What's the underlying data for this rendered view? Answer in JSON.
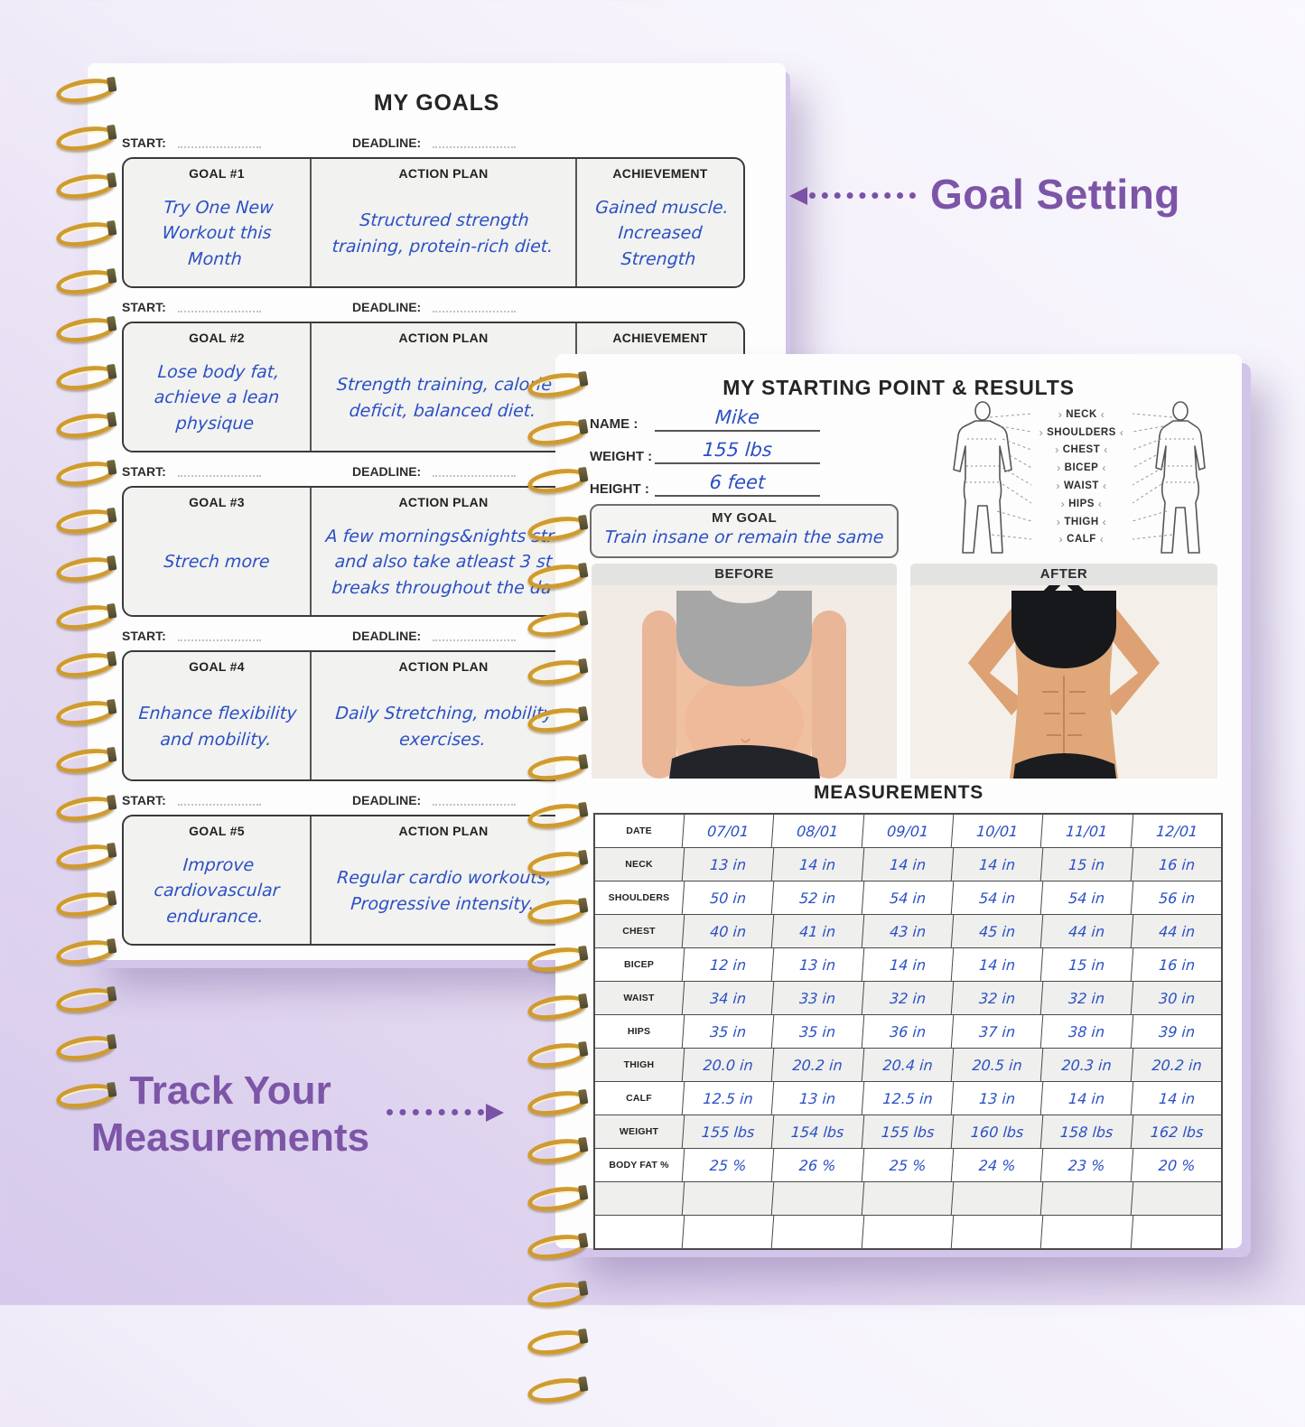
{
  "annotations": {
    "goal_setting": "Goal Setting",
    "track_line1": "Track Your",
    "track_line2": "Measurements"
  },
  "left_page": {
    "title": "MY GOALS",
    "start_label": "START:",
    "deadline_label": "DEADLINE:",
    "action_header": "ACTION PLAN",
    "achievement_header": "ACHIEVEMENT",
    "goals": [
      {
        "header": "GOAL #1",
        "goal": "Try One New Workout this Month",
        "action": "Structured strength training, protein-rich diet.",
        "achievement": "Gained muscle. Increased Strength"
      },
      {
        "header": "GOAL #2",
        "goal": "Lose body fat, achieve a lean physique",
        "action": "Strength training, calorie deficit, balanced diet.",
        "achievement": ""
      },
      {
        "header": "GOAL #3",
        "goal": "Strech more",
        "action": "A few mornings&nights stre and also take atleast 3 st breaks throughout the da",
        "achievement": ""
      },
      {
        "header": "GOAL #4",
        "goal": "Enhance flexibility and mobility.",
        "action": "Daily Stretching, mobility exercises.",
        "achievement": ""
      },
      {
        "header": "GOAL #5",
        "goal": "Improve cardiovascular endurance.",
        "action": "Regular cardio workouts, Progressive intensity.",
        "achievement": ""
      }
    ]
  },
  "right_page": {
    "title": "MY STARTING POINT & RESULTS",
    "fields": {
      "name": {
        "label": "NAME :",
        "value": "Mike"
      },
      "weight": {
        "label": "WEIGHT :",
        "value": "155 lbs"
      },
      "height": {
        "label": "HEIGHT :",
        "value": "6 feet"
      }
    },
    "my_goal": {
      "label": "MY GOAL",
      "value": "Train insane or remain the same"
    },
    "body_labels": [
      "NECK",
      "SHOULDERS",
      "CHEST",
      "BICEP",
      "WAIST",
      "HIPS",
      "THIGH",
      "CALF"
    ],
    "before_label": "BEFORE",
    "after_label": "AFTER",
    "measurements": {
      "title": "MEASUREMENTS",
      "rows": [
        {
          "label": "DATE",
          "values": [
            "07/01",
            "08/01",
            "09/01",
            "10/01",
            "11/01",
            "12/01"
          ]
        },
        {
          "label": "NECK",
          "values": [
            "13 in",
            "14 in",
            "14 in",
            "14 in",
            "15 in",
            "16 in"
          ]
        },
        {
          "label": "SHOULDERS",
          "values": [
            "50 in",
            "52 in",
            "54 in",
            "54 in",
            "54 in",
            "56 in"
          ]
        },
        {
          "label": "CHEST",
          "values": [
            "40 in",
            "41 in",
            "43 in",
            "45 in",
            "44 in",
            "44 in"
          ]
        },
        {
          "label": "BICEP",
          "values": [
            "12 in",
            "13 in",
            "14 in",
            "14 in",
            "15 in",
            "16 in"
          ]
        },
        {
          "label": "WAIST",
          "values": [
            "34 in",
            "33 in",
            "32 in",
            "32 in",
            "32 in",
            "30 in"
          ]
        },
        {
          "label": "HIPS",
          "values": [
            "35 in",
            "35 in",
            "36 in",
            "37 in",
            "38 in",
            "39 in"
          ]
        },
        {
          "label": "THIGH",
          "values": [
            "20.0 in",
            "20.2 in",
            "20.4 in",
            "20.5 in",
            "20.3 in",
            "20.2 in"
          ]
        },
        {
          "label": "CALF",
          "values": [
            "12.5 in",
            "13 in",
            "12.5 in",
            "13 in",
            "14 in",
            "14 in"
          ]
        },
        {
          "label": "WEIGHT",
          "values": [
            "155 lbs",
            "154 lbs",
            "155 lbs",
            "160 lbs",
            "158 lbs",
            "162 lbs"
          ]
        },
        {
          "label": "BODY FAT %",
          "values": [
            "25 %",
            "26 %",
            "25 %",
            "24 %",
            "23 %",
            "20 %"
          ]
        },
        {
          "label": "",
          "values": [
            "",
            "",
            "",
            "",
            "",
            ""
          ]
        },
        {
          "label": "",
          "values": [
            "",
            "",
            "",
            "",
            "",
            ""
          ]
        }
      ]
    }
  },
  "colors": {
    "accent_purple": "#7d55a7",
    "handwriting_blue": "#2b50c4",
    "spiral_gold": "#cf9b30",
    "page_background": "#fdfdfd",
    "box_gray": "#f2f2f0"
  }
}
